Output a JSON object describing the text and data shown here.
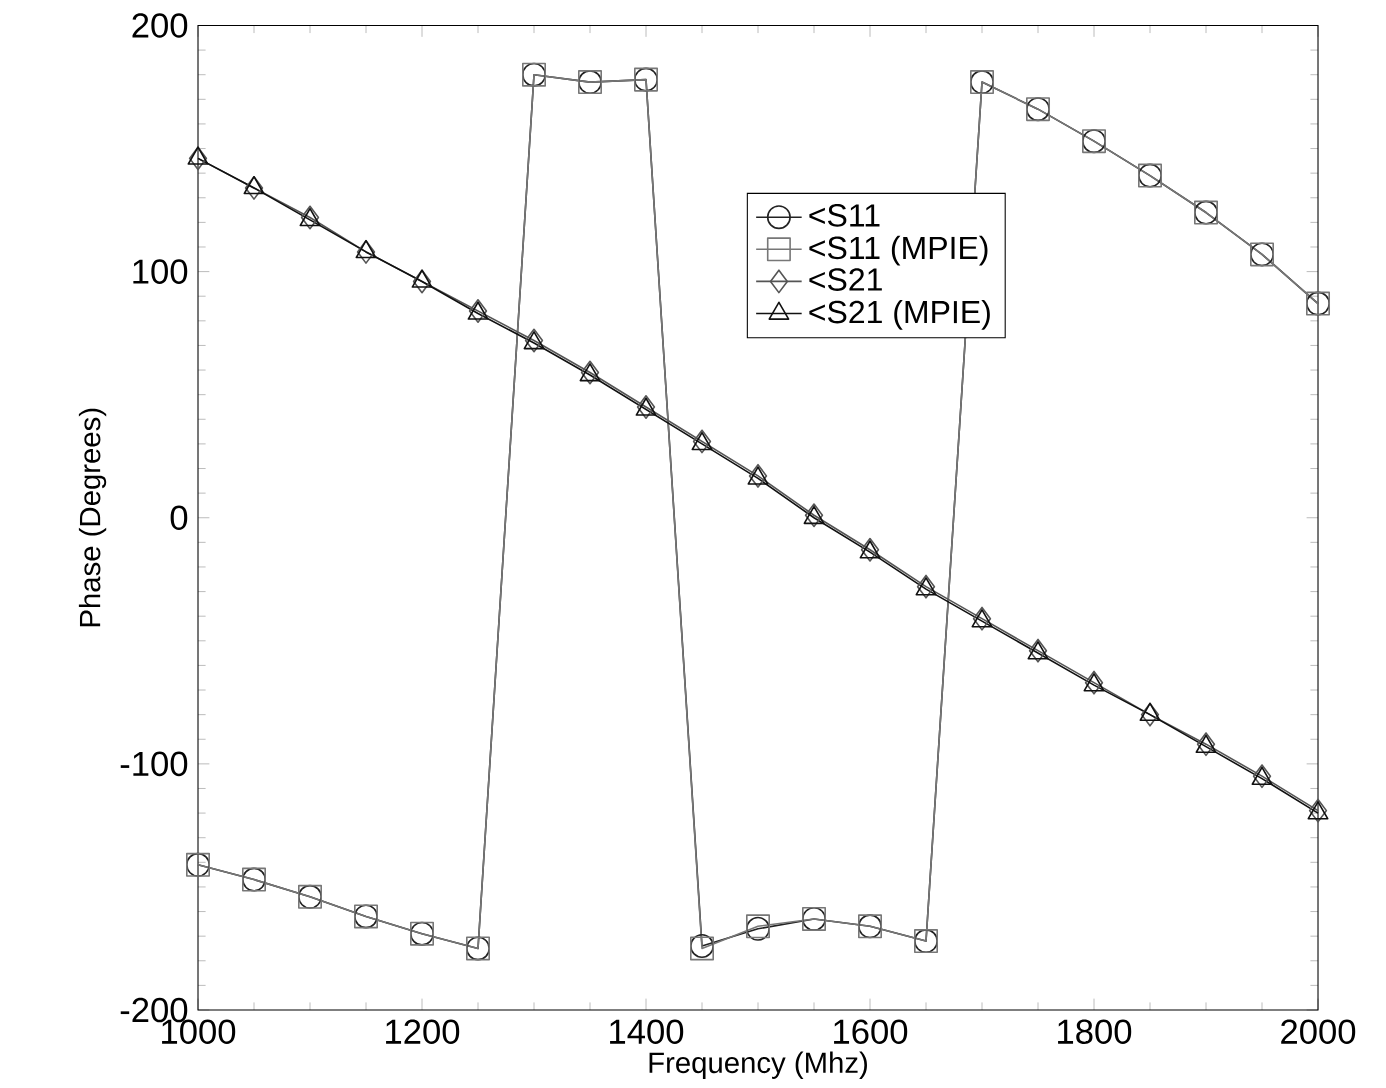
{
  "chart_data": {
    "type": "line",
    "xlabel": "Frequency (Mhz)",
    "ylabel": "Phase (Degrees)",
    "x": [
      1000,
      1050,
      1100,
      1150,
      1200,
      1250,
      1300,
      1350,
      1400,
      1450,
      1500,
      1550,
      1600,
      1650,
      1700,
      1750,
      1800,
      1850,
      1900,
      1950,
      2000
    ],
    "xlim": [
      1000,
      2000
    ],
    "ylim": [
      -200,
      200
    ],
    "xticks": [
      1000,
      1200,
      1400,
      1600,
      1800,
      2000
    ],
    "yticks": [
      -200,
      -100,
      0,
      100,
      200
    ],
    "grid": false,
    "legend": "top right",
    "series": [
      {
        "name": "<S11",
        "color": "#222222",
        "marker": "circle",
        "values": [
          -141,
          -147,
          -154,
          -162,
          -169,
          -175,
          180,
          177,
          178,
          -174,
          -167,
          -163,
          -166,
          -172,
          177,
          166,
          153,
          139,
          124,
          107,
          87
        ]
      },
      {
        "name": "<S11 (MPIE)",
        "color": "#777777",
        "marker": "square",
        "values": [
          -141,
          -147,
          -154,
          -162,
          -169,
          -175,
          180,
          177,
          178,
          -175,
          -166,
          -163,
          -166,
          -172,
          177,
          166,
          153,
          139,
          124,
          107,
          87
        ]
      },
      {
        "name": "<S21",
        "color": "#555555",
        "marker": "diamond",
        "values": [
          146,
          134,
          122,
          108,
          96,
          84,
          72,
          59,
          45,
          31,
          17,
          1,
          -13,
          -28,
          -41,
          -54,
          -67,
          -80,
          -92,
          -105,
          -119
        ]
      },
      {
        "name": "<S21 (MPIE)",
        "color": "#111111",
        "marker": "triangle",
        "values": [
          146,
          134,
          121,
          108,
          96,
          83,
          71,
          58,
          44,
          30,
          16,
          0,
          -14,
          -29,
          -42,
          -55,
          -68,
          -80,
          -93,
          -106,
          -120
        ]
      }
    ]
  }
}
